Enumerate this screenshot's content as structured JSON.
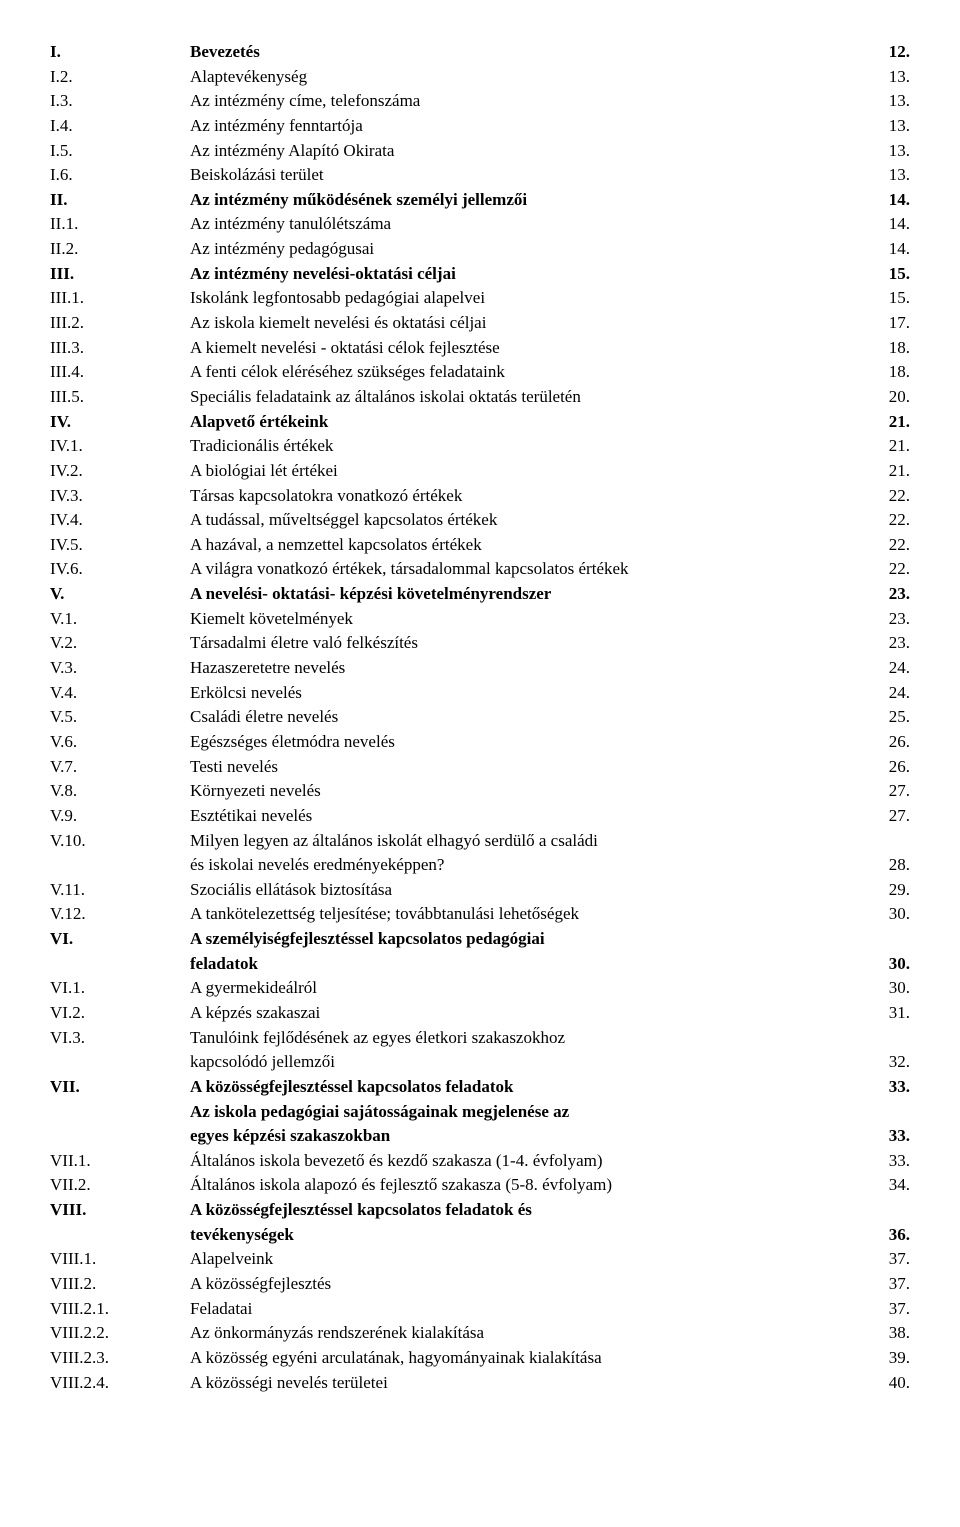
{
  "toc": [
    {
      "num": "I.",
      "title": "Bevezetés",
      "page": "12.",
      "bold": true,
      "continuation": false
    },
    {
      "num": "I.2.",
      "title": "Alaptevékenység",
      "page": "13.",
      "bold": false,
      "continuation": false
    },
    {
      "num": "I.3.",
      "title": "Az intézmény címe, telefonszáma",
      "page": "13.",
      "bold": false,
      "continuation": false
    },
    {
      "num": "I.4.",
      "title": "Az intézmény fenntartója",
      "page": "13.",
      "bold": false,
      "continuation": false
    },
    {
      "num": "I.5.",
      "title": "Az intézmény Alapító Okirata",
      "page": "13.",
      "bold": false,
      "continuation": false
    },
    {
      "num": "I.6.",
      "title": "Beiskolázási terület",
      "page": "13.",
      "bold": false,
      "continuation": false
    },
    {
      "num": "II.",
      "title": "Az intézmény működésének személyi jellemzői",
      "page": "14.",
      "bold": true,
      "continuation": false
    },
    {
      "num": "II.1.",
      "title": "Az intézmény tanulólétszáma",
      "page": "14.",
      "bold": false,
      "continuation": false
    },
    {
      "num": "II.2.",
      "title": "Az intézmény pedagógusai",
      "page": "14.",
      "bold": false,
      "continuation": false
    },
    {
      "num": "III.",
      "title": "Az intézmény nevelési-oktatási céljai",
      "page": "15.",
      "bold": true,
      "continuation": false
    },
    {
      "num": "III.1.",
      "title": "Iskolánk legfontosabb pedagógiai alapelvei",
      "page": "15.",
      "bold": false,
      "continuation": false
    },
    {
      "num": "III.2.",
      "title": "Az iskola kiemelt nevelési és oktatási céljai",
      "page": "17.",
      "bold": false,
      "continuation": false
    },
    {
      "num": "III.3.",
      "title": "A kiemelt nevelési - oktatási célok fejlesztése",
      "page": "18.",
      "bold": false,
      "continuation": false
    },
    {
      "num": "III.4.",
      "title": "A fenti célok eléréséhez szükséges feladataink",
      "page": "18.",
      "bold": false,
      "continuation": false
    },
    {
      "num": "III.5.",
      "title": "Speciális feladataink az általános iskolai oktatás területén",
      "page": "20.",
      "bold": false,
      "continuation": false
    },
    {
      "num": "IV.",
      "title": "Alapvető értékeink",
      "page": "21.",
      "bold": true,
      "continuation": false
    },
    {
      "num": "IV.1.",
      "title": "Tradicionális értékek",
      "page": "21.",
      "bold": false,
      "continuation": false
    },
    {
      "num": "IV.2.",
      "title": "A biológiai lét értékei",
      "page": "21.",
      "bold": false,
      "continuation": false
    },
    {
      "num": "IV.3.",
      "title": "Társas kapcsolatokra vonatkozó értékek",
      "page": "22.",
      "bold": false,
      "continuation": false
    },
    {
      "num": "IV.4.",
      "title": "A tudással, műveltséggel kapcsolatos értékek",
      "page": "22.",
      "bold": false,
      "continuation": false
    },
    {
      "num": "IV.5.",
      "title": "A hazával, a nemzettel kapcsolatos értékek",
      "page": "22.",
      "bold": false,
      "continuation": false
    },
    {
      "num": "IV.6.",
      "title": "A világra vonatkozó értékek, társadalommal kapcsolatos értékek",
      "page": "22.",
      "bold": false,
      "continuation": false
    },
    {
      "num": "V.",
      "title": "A  nevelési- oktatási- képzési követelményrendszer",
      "page": "23.",
      "bold": true,
      "continuation": false
    },
    {
      "num": "V.1.",
      "title": "Kiemelt követelmények",
      "page": "23.",
      "bold": false,
      "continuation": false
    },
    {
      "num": "V.2.",
      "title": "Társadalmi életre való felkészítés",
      "page": "23.",
      "bold": false,
      "continuation": false
    },
    {
      "num": "V.3.",
      "title": "Hazaszeretetre nevelés",
      "page": "24.",
      "bold": false,
      "continuation": false
    },
    {
      "num": "V.4.",
      "title": "Erkölcsi nevelés",
      "page": "24.",
      "bold": false,
      "continuation": false
    },
    {
      "num": "V.5.",
      "title": "Családi életre nevelés",
      "page": "25.",
      "bold": false,
      "continuation": false
    },
    {
      "num": "V.6.",
      "title": "Egészséges életmódra nevelés",
      "page": "26.",
      "bold": false,
      "continuation": false
    },
    {
      "num": "V.7.",
      "title": "Testi nevelés",
      "page": "26.",
      "bold": false,
      "continuation": false
    },
    {
      "num": "V.8.",
      "title": "Környezeti nevelés",
      "page": "27.",
      "bold": false,
      "continuation": false
    },
    {
      "num": "V.9.",
      "title": "Esztétikai nevelés",
      "page": "27.",
      "bold": false,
      "continuation": false
    },
    {
      "num": "V.10.",
      "title": "Milyen legyen az általános iskolát elhagyó serdülő a családi",
      "page": "",
      "bold": false,
      "continuation": false
    },
    {
      "num": "",
      "title": "és iskolai  nevelés eredményeképpen?",
      "page": "28.",
      "bold": false,
      "continuation": true
    },
    {
      "num": "V.11.",
      "title": "Szociális ellátások biztosítása",
      "page": "29.",
      "bold": false,
      "continuation": false
    },
    {
      "num": "V.12.",
      "title": "A tankötelezettség teljesítése; továbbtanulási lehetőségek",
      "page": "30.",
      "bold": false,
      "continuation": false
    },
    {
      "num": "VI.",
      "title": "A személyiségfejlesztéssel kapcsolatos pedagógiai",
      "page": "",
      "bold": true,
      "continuation": false
    },
    {
      "num": "",
      "title": "feladatok",
      "page": "30.",
      "bold": true,
      "continuation": true
    },
    {
      "num": "VI.1.",
      "title": "A gyermekideálról",
      "page": "30.",
      "bold": false,
      "continuation": false
    },
    {
      "num": "VI.2.",
      "title": "A képzés szakaszai",
      "page": "31.",
      "bold": false,
      "continuation": false
    },
    {
      "num": "VI.3.",
      "title": "Tanulóink fejlődésének az egyes életkori szakaszokhoz",
      "page": "",
      "bold": false,
      "continuation": false
    },
    {
      "num": "",
      "title": "kapcsolódó jellemzői",
      "page": "32.",
      "bold": false,
      "continuation": true
    },
    {
      "num": "VII.",
      "title": "A közösségfejlesztéssel kapcsolatos feladatok",
      "page": "33.",
      "bold": true,
      "continuation": false
    },
    {
      "num": "",
      "title": "Az iskola pedagógiai sajátosságainak megjelenése az",
      "page": "",
      "bold": true,
      "continuation": true
    },
    {
      "num": "",
      "title": "egyes képzési szakaszokban",
      "page": "33.",
      "bold": true,
      "continuation": true
    },
    {
      "num": "VII.1.",
      "title": "Általános iskola bevezető és kezdő szakasza (1-4. évfolyam)",
      "page": "33.",
      "bold": false,
      "continuation": false
    },
    {
      "num": "VII.2.",
      "title": "Általános iskola alapozó és fejlesztő szakasza (5-8. évfolyam)",
      "page": "34.",
      "bold": false,
      "continuation": false
    },
    {
      "num": "VIII.",
      "title": "A közösségfejlesztéssel kapcsolatos feladatok és",
      "page": "",
      "bold": true,
      "continuation": false
    },
    {
      "num": "",
      "title": "tevékenységek",
      "page": "36.",
      "bold": true,
      "continuation": true
    },
    {
      "num": "VIII.1.",
      "title": "Alapelveink",
      "page": "37.",
      "bold": false,
      "continuation": false
    },
    {
      "num": "VIII.2.",
      "title": "A közösségfejlesztés",
      "page": "37.",
      "bold": false,
      "continuation": false
    },
    {
      "num": "VIII.2.1.",
      "title": "Feladatai",
      "page": "37.",
      "bold": false,
      "continuation": false
    },
    {
      "num": "VIII.2.2.",
      "title": "Az önkormányzás rendszerének kialakítása",
      "page": "38.",
      "bold": false,
      "continuation": false
    },
    {
      "num": "VIII.2.3.",
      "title": "A közösség egyéni arculatának, hagyományainak kialakítása",
      "page": "39.",
      "bold": false,
      "continuation": false
    },
    {
      "num": "VIII.2.4.",
      "title": "A közösségi nevelés területei",
      "page": "40.",
      "bold": false,
      "continuation": false
    }
  ]
}
